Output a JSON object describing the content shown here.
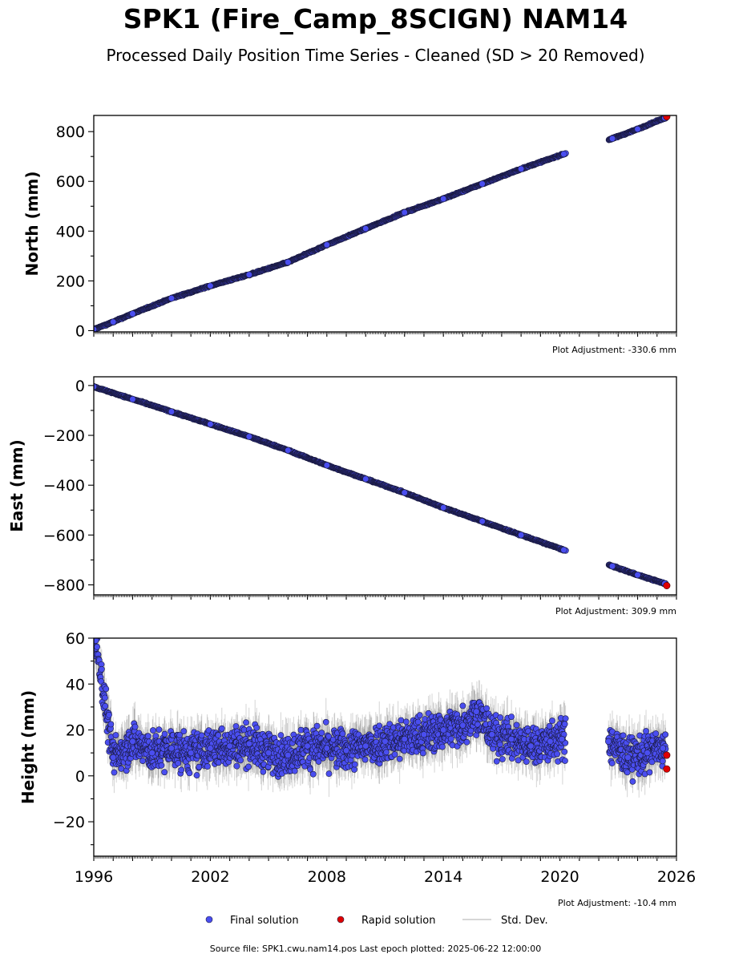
{
  "title": "SPK1 (Fire_Camp_8SCIGN) NAM14",
  "subtitle": "Processed Daily Position Time Series - Cleaned (SD > 20 Removed)",
  "source_note": "Source file: SPK1.cwu.nam14.pos  Last epoch plotted: 2025-06-22 12:00:00",
  "colors": {
    "final": "#4a4ef0",
    "rapid": "#e00000",
    "stddev": "#c8c8c8"
  },
  "legend": [
    {
      "key": "final",
      "label": "Final solution"
    },
    {
      "key": "rapid",
      "label": "Rapid solution"
    },
    {
      "key": "stddev",
      "label": "Std. Dev."
    }
  ],
  "chart_data": [
    {
      "type": "scatter",
      "panel": "north",
      "ylabel": "North (mm)",
      "xlim": [
        1996,
        2026
      ],
      "ylim": [
        -5,
        865
      ],
      "yticks": [
        0,
        200,
        400,
        600,
        800
      ],
      "adjustment": "Plot Adjustment: -330.6 mm",
      "x_tick_labels": [],
      "series": [
        {
          "name": "Final solution",
          "x": [
            1996.0,
            1997.0,
            1998.0,
            2000.0,
            2002.0,
            2004.0,
            2006.0,
            2008.0,
            2010.0,
            2012.0,
            2014.0,
            2016.0,
            2018.0,
            2020.2,
            2022.7,
            2024.0,
            2025.4
          ],
          "y": [
            5,
            35,
            68,
            130,
            180,
            225,
            275,
            345,
            410,
            475,
            530,
            590,
            650,
            710,
            772,
            810,
            855
          ]
        },
        {
          "name": "Rapid solution",
          "x": [
            2025.5
          ],
          "y": [
            860
          ]
        }
      ]
    },
    {
      "type": "scatter",
      "panel": "east",
      "ylabel": "East (mm)",
      "xlim": [
        1996,
        2026
      ],
      "ylim": [
        -840,
        35
      ],
      "yticks": [
        0,
        -200,
        -400,
        -600,
        -800
      ],
      "adjustment": "Plot Adjustment: 309.9 mm",
      "x_tick_labels": [],
      "series": [
        {
          "name": "Final solution",
          "x": [
            1996.0,
            1998.0,
            2000.0,
            2002.0,
            2004.0,
            2006.0,
            2008.0,
            2010.0,
            2012.0,
            2014.0,
            2016.0,
            2018.0,
            2020.2,
            2022.7,
            2024.0,
            2025.4
          ],
          "y": [
            -5,
            -55,
            -105,
            -155,
            -205,
            -260,
            -320,
            -375,
            -430,
            -490,
            -545,
            -600,
            -660,
            -725,
            -760,
            -795
          ]
        },
        {
          "name": "Rapid solution",
          "x": [
            2025.5
          ],
          "y": [
            -803
          ]
        }
      ]
    },
    {
      "type": "scatter",
      "panel": "height",
      "ylabel": "Height (mm)",
      "xlim": [
        1996,
        2026
      ],
      "ylim": [
        -35,
        60
      ],
      "yticks": [
        60,
        40,
        20,
        0,
        -20
      ],
      "adjustment": "Plot Adjustment: -10.4 mm",
      "x_tick_labels": [
        "1996",
        "2002",
        "2008",
        "2014",
        "2020",
        "2026"
      ],
      "series": [
        {
          "name": "Final solution",
          "x": [
            1996.1,
            1997.0,
            1998.0,
            1999.0,
            2000.0,
            2001.0,
            2002.0,
            2003.0,
            2004.0,
            2005.0,
            2006.0,
            2007.0,
            2008.0,
            2009.0,
            2010.0,
            2011.0,
            2012.0,
            2013.0,
            2014.0,
            2015.0,
            2015.7,
            2016.5,
            2017.5,
            2018.5,
            2019.5,
            2020.1,
            2022.5,
            2023.5,
            2024.5,
            2025.3
          ],
          "y": [
            59,
            8,
            15,
            10,
            12,
            10,
            12,
            13,
            14,
            10,
            9,
            13,
            12,
            11,
            13,
            15,
            16,
            18,
            20,
            22,
            28,
            18,
            16,
            13,
            15,
            16,
            15,
            8,
            10,
            12
          ]
        },
        {
          "name": "Rapid solution",
          "x": [
            2025.5,
            2025.5
          ],
          "y": [
            9,
            3
          ]
        }
      ]
    }
  ]
}
